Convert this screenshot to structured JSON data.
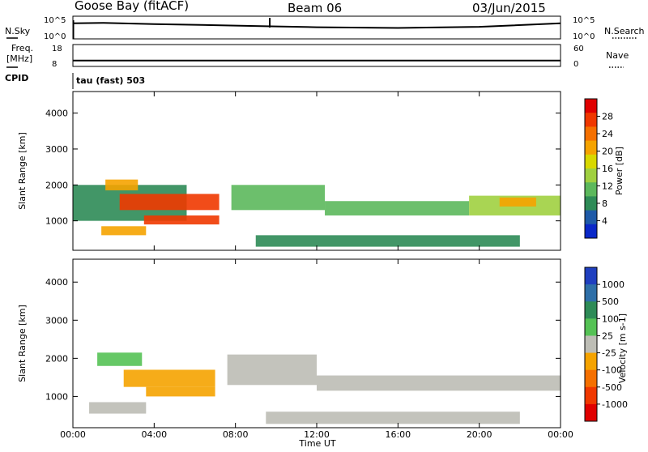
{
  "header": {
    "station": "Goose Bay (fitACF)",
    "beam": "Beam 06",
    "date": "03/Jun/2015"
  },
  "strip_noise": {
    "left_label": "N.Sky",
    "right_label": "N.Search",
    "left_ticks": [
      "10^5",
      "10^0"
    ],
    "right_ticks": [
      "10^5",
      "10^0"
    ]
  },
  "strip_freq": {
    "left_label_1": "Freq.",
    "left_label_2": "[MHz]",
    "right_label": "Nave",
    "left_ticks": [
      "18",
      "8"
    ],
    "right_ticks": [
      "60",
      "0"
    ]
  },
  "cpid": {
    "label": "CPID",
    "value": "tau (fast) 503"
  },
  "power_panel": {
    "ylabel": "Slant Range [km]",
    "colorbar_label": "Power [dB]",
    "colorbar_ticks": [
      "28",
      "24",
      "20",
      "16",
      "12",
      "8",
      "4"
    ],
    "colorbar_colors": [
      "#e00000",
      "#f03800",
      "#f57000",
      "#f5a300",
      "#d8d800",
      "#a0d040",
      "#5cb85c",
      "#2e8b57",
      "#1e5aa8",
      "#0a28c8"
    ]
  },
  "velocity_panel": {
    "ylabel": "Slant Range [km]",
    "colorbar_label": "Velocity [m s-1]",
    "colorbar_ticks": [
      "1000",
      "500",
      "100",
      "25",
      "-25",
      "-100",
      "-500",
      "-1000"
    ],
    "colorbar_colors": [
      "#1f3fbf",
      "#2e6fa8",
      "#2e8b57",
      "#55c255",
      "#bdbdb5",
      "#f5a300",
      "#f57000",
      "#f03800",
      "#e00000"
    ]
  },
  "xaxis": {
    "label": "Time UT",
    "ticks": [
      "00:00",
      "04:00",
      "08:00",
      "12:00",
      "16:00",
      "20:00",
      "00:00"
    ]
  },
  "chart_data": {
    "type": "heatmap",
    "title": "Goose Bay (fitACF)  Beam 06  03/Jun/2015",
    "xlabel": "Time UT",
    "ylabel": "Slant Range [km]",
    "x_range_hours": [
      0,
      24
    ],
    "y_range_km": [
      180,
      4600
    ],
    "y_ticks_km": [
      1000,
      2000,
      3000,
      4000
    ],
    "panels": [
      {
        "name": "Power",
        "unit": "dB",
        "scale": [
          0,
          30
        ],
        "regions": [
          {
            "t0": 0.0,
            "t1": 5.6,
            "r0": 1000,
            "r1": 2000,
            "value": 6
          },
          {
            "t0": 2.3,
            "t1": 7.2,
            "r0": 1300,
            "r1": 1750,
            "value": 26
          },
          {
            "t0": 3.5,
            "t1": 7.2,
            "r0": 900,
            "r1": 1150,
            "value": 24
          },
          {
            "t0": 1.4,
            "t1": 3.6,
            "r0": 600,
            "r1": 850,
            "value": 20
          },
          {
            "t0": 1.6,
            "t1": 3.2,
            "r0": 1850,
            "r1": 2150,
            "value": 18
          },
          {
            "t0": 7.8,
            "t1": 12.4,
            "r0": 1300,
            "r1": 2000,
            "value": 9
          },
          {
            "t0": 12.4,
            "t1": 19.5,
            "r0": 1150,
            "r1": 1550,
            "value": 9
          },
          {
            "t0": 19.5,
            "t1": 24.0,
            "r0": 1150,
            "r1": 1700,
            "value": 14
          },
          {
            "t0": 21.0,
            "t1": 22.8,
            "r0": 1400,
            "r1": 1650,
            "value": 20
          },
          {
            "t0": 9.0,
            "t1": 22.0,
            "r0": 280,
            "r1": 600,
            "value": 8
          }
        ]
      },
      {
        "name": "Velocity",
        "unit": "m s-1",
        "scale": [
          -1000,
          1000
        ],
        "regions": [
          {
            "t0": 1.2,
            "t1": 3.4,
            "r0": 1800,
            "r1": 2150,
            "value": 120
          },
          {
            "t0": 2.5,
            "t1": 7.0,
            "r0": 1250,
            "r1": 1700,
            "value": -120
          },
          {
            "t0": 3.6,
            "t1": 7.0,
            "r0": 1000,
            "r1": 1250,
            "value": -250
          },
          {
            "t0": 7.6,
            "t1": 12.0,
            "r0": 1300,
            "r1": 2100,
            "value": 0
          },
          {
            "t0": 12.0,
            "t1": 24.0,
            "r0": 1150,
            "r1": 1550,
            "value": 0
          },
          {
            "t0": 0.8,
            "t1": 3.6,
            "r0": 550,
            "r1": 850,
            "value": 0
          },
          {
            "t0": 9.5,
            "t1": 22.0,
            "r0": 280,
            "r1": 600,
            "value": 5
          }
        ]
      }
    ],
    "strips": {
      "noise_log10": {
        "t": [
          0,
          1.5,
          4,
          8,
          10,
          12,
          16,
          20,
          24
        ],
        "sky": [
          3.8,
          3.9,
          3.6,
          3.2,
          3.0,
          2.8,
          2.6,
          2.9,
          3.8
        ]
      },
      "freq_mhz": {
        "t": [
          0,
          24
        ],
        "value": [
          10.5,
          10.5
        ]
      }
    }
  }
}
